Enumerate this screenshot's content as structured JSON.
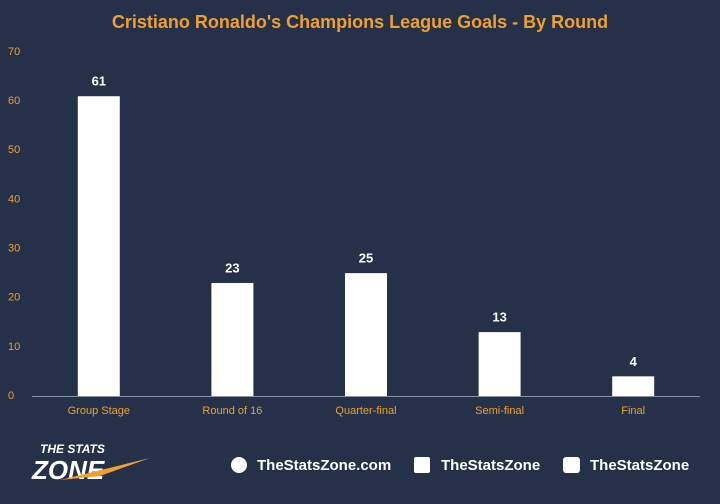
{
  "chart_data": {
    "type": "bar",
    "title": "Cristiano Ronaldo's Champions League Goals - By Round",
    "categories": [
      "Group Stage",
      "Round of 16",
      "Quarter-final",
      "Semi-final",
      "Final"
    ],
    "values": [
      61,
      23,
      25,
      13,
      4
    ],
    "color": "#ffffff",
    "ylim": [
      0,
      70
    ],
    "yticks": [
      0,
      10,
      20,
      30,
      40,
      50,
      60,
      70
    ],
    "grid": false
  },
  "footer": {
    "logo_top": "THE STATS",
    "logo_bottom": "ZONE",
    "links": [
      "TheStatsZone.com",
      "TheStatsZone",
      "TheStatsZone"
    ]
  }
}
